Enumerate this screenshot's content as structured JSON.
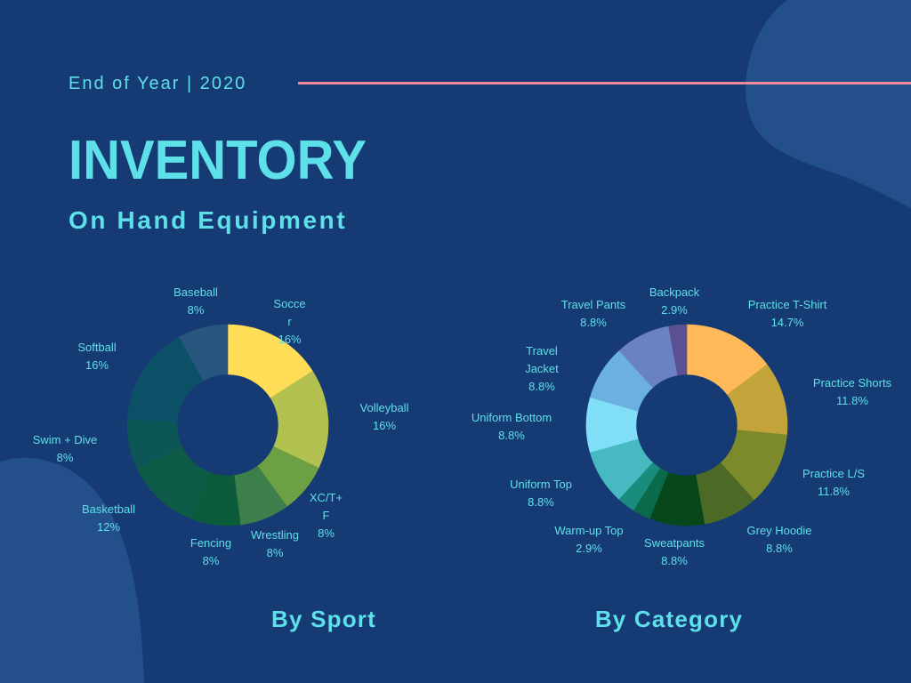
{
  "header": {
    "eyebrow": "End of Year | 2020",
    "title": "INVENTORY",
    "subtitle": "On Hand Equipment"
  },
  "colors": {
    "background": "#163a74",
    "blob": "#234f8a",
    "text_accent": "#5ee0e8",
    "divider": "#f0899a"
  },
  "chart_data": [
    {
      "type": "pie",
      "donut": true,
      "title": "By Sport",
      "categories": [
        "Soccer",
        "Volleyball",
        "XC/T+F",
        "Wrestling",
        "Fencing",
        "Basketball",
        "Swim + Dive",
        "Softball",
        "Baseball"
      ],
      "values": [
        16,
        16,
        8,
        8,
        8,
        12,
        8,
        16,
        8
      ],
      "value_labels": [
        "16%",
        "16%",
        "8%",
        "8%",
        "8%",
        "12%",
        "8%",
        "16%",
        "8%"
      ],
      "colors": [
        "#ffdd57",
        "#b3c150",
        "#6da044",
        "#3d7f4a",
        "#0c5b3b",
        "#0d5b47",
        "#0d5658",
        "#0c5068",
        "#27577f"
      ]
    },
    {
      "type": "pie",
      "donut": true,
      "title": "By Category",
      "categories": [
        "Practice T-Shirt",
        "Practice Shorts",
        "Practice L/S",
        "Grey Hoodie",
        "Sweatpants",
        "Warm-up Top",
        "",
        "Uniform Top",
        "Uniform Bottom",
        "Travel Jacket",
        "Travel Pants",
        "Backpack"
      ],
      "values": [
        14.7,
        11.8,
        11.8,
        8.8,
        8.8,
        2.9,
        2.9,
        8.8,
        8.8,
        8.8,
        8.8,
        2.9
      ],
      "value_labels": [
        "14.7%",
        "11.8%",
        "11.8%",
        "8.8%",
        "8.8%",
        "2.9%",
        "",
        "8.8%",
        "8.8%",
        "8.8%",
        "8.8%",
        "2.9%"
      ],
      "colors": [
        "#ffb958",
        "#c3a43b",
        "#7c8a2c",
        "#4c6a25",
        "#07481a",
        "#0a6b4b",
        "#1a8c7e",
        "#46b9c1",
        "#80def6",
        "#6cb0e2",
        "#6b82c2",
        "#5b5091"
      ]
    }
  ]
}
